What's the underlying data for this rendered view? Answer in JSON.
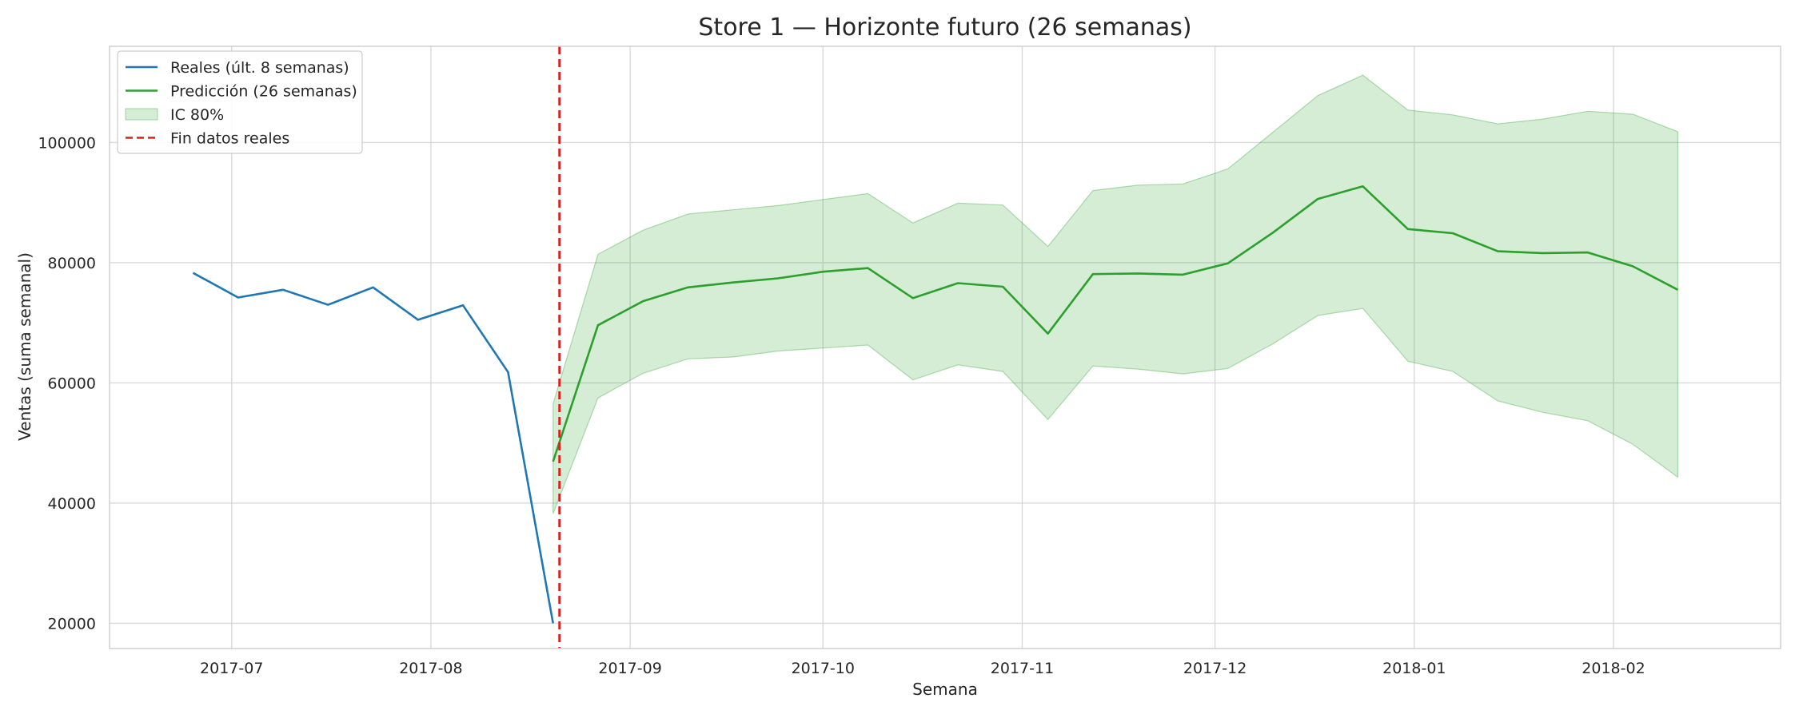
{
  "chart_data": {
    "type": "line",
    "title": "Store 1 — Horizonte futuro (26 semanas)",
    "xlabel": "Semana",
    "ylabel": "Ventas (suma semanal)",
    "x_type": "date",
    "xlim": [
      "2017-06-12",
      "2018-02-27"
    ],
    "ylim": [
      15800,
      116000
    ],
    "grid": true,
    "legend_position": "top-left",
    "x_ticks": [
      {
        "date": "2017-07-01",
        "label": "2017-07"
      },
      {
        "date": "2017-08-01",
        "label": "2017-08"
      },
      {
        "date": "2017-09-01",
        "label": "2017-09"
      },
      {
        "date": "2017-10-01",
        "label": "2017-10"
      },
      {
        "date": "2017-11-01",
        "label": "2017-11"
      },
      {
        "date": "2017-12-01",
        "label": "2017-12"
      },
      {
        "date": "2018-01-01",
        "label": "2018-01"
      },
      {
        "date": "2018-02-01",
        "label": "2018-02"
      }
    ],
    "y_ticks": [
      20000,
      40000,
      60000,
      80000,
      100000
    ],
    "y_tick_labels": [
      "20000",
      "40000",
      "60000",
      "80000",
      "100000"
    ],
    "series": [
      {
        "name": "Reales (últ. 8 semanas)",
        "color": "#1f77b4",
        "style": "solid",
        "points": [
          {
            "x": "2017-06-25",
            "y": 78300
          },
          {
            "x": "2017-07-02",
            "y": 74200
          },
          {
            "x": "2017-07-09",
            "y": 75500
          },
          {
            "x": "2017-07-16",
            "y": 73000
          },
          {
            "x": "2017-07-23",
            "y": 75900
          },
          {
            "x": "2017-07-30",
            "y": 70500
          },
          {
            "x": "2017-08-06",
            "y": 72900
          },
          {
            "x": "2017-08-13",
            "y": 61800
          },
          {
            "x": "2017-08-20",
            "y": 20000
          }
        ]
      },
      {
        "name": "Predicción (26 semanas)",
        "color": "#2ca02c",
        "style": "solid",
        "points": [
          {
            "x": "2017-08-20",
            "y": 46900
          },
          {
            "x": "2017-08-27",
            "y": 69600
          },
          {
            "x": "2017-09-03",
            "y": 73600
          },
          {
            "x": "2017-09-10",
            "y": 75900
          },
          {
            "x": "2017-09-17",
            "y": 76700
          },
          {
            "x": "2017-09-24",
            "y": 77400
          },
          {
            "x": "2017-10-01",
            "y": 78500
          },
          {
            "x": "2017-10-08",
            "y": 79100
          },
          {
            "x": "2017-10-15",
            "y": 74100
          },
          {
            "x": "2017-10-22",
            "y": 76600
          },
          {
            "x": "2017-10-29",
            "y": 76000
          },
          {
            "x": "2017-11-05",
            "y": 68200
          },
          {
            "x": "2017-11-12",
            "y": 78100
          },
          {
            "x": "2017-11-19",
            "y": 78200
          },
          {
            "x": "2017-11-26",
            "y": 78000
          },
          {
            "x": "2017-12-03",
            "y": 79900
          },
          {
            "x": "2017-12-10",
            "y": 85000
          },
          {
            "x": "2017-12-17",
            "y": 90600
          },
          {
            "x": "2017-12-24",
            "y": 92700
          },
          {
            "x": "2017-12-31",
            "y": 85600
          },
          {
            "x": "2018-01-07",
            "y": 84900
          },
          {
            "x": "2018-01-14",
            "y": 81900
          },
          {
            "x": "2018-01-21",
            "y": 81600
          },
          {
            "x": "2018-01-28",
            "y": 81700
          },
          {
            "x": "2018-02-04",
            "y": 79400
          },
          {
            "x": "2018-02-11",
            "y": 75500
          }
        ]
      }
    ],
    "band": {
      "name": "IC 80%",
      "color": "#2ca02c",
      "opacity": 0.2,
      "points": [
        {
          "x": "2017-08-20",
          "lower": 38200,
          "upper": 56500
        },
        {
          "x": "2017-08-27",
          "lower": 57500,
          "upper": 81400
        },
        {
          "x": "2017-09-03",
          "lower": 61600,
          "upper": 85400
        },
        {
          "x": "2017-09-10",
          "lower": 64000,
          "upper": 88100
        },
        {
          "x": "2017-09-17",
          "lower": 64300,
          "upper": 88800
        },
        {
          "x": "2017-09-24",
          "lower": 65300,
          "upper": 89500
        },
        {
          "x": "2017-10-01",
          "lower": 65800,
          "upper": 90500
        },
        {
          "x": "2017-10-08",
          "lower": 66300,
          "upper": 91500
        },
        {
          "x": "2017-10-15",
          "lower": 60500,
          "upper": 86600
        },
        {
          "x": "2017-10-22",
          "lower": 63000,
          "upper": 89900
        },
        {
          "x": "2017-10-29",
          "lower": 61900,
          "upper": 89600
        },
        {
          "x": "2017-11-05",
          "lower": 53900,
          "upper": 82700
        },
        {
          "x": "2017-11-12",
          "lower": 62800,
          "upper": 92000
        },
        {
          "x": "2017-11-19",
          "lower": 62300,
          "upper": 92900
        },
        {
          "x": "2017-11-26",
          "lower": 61500,
          "upper": 93100
        },
        {
          "x": "2017-12-03",
          "lower": 62400,
          "upper": 95600
        },
        {
          "x": "2017-12-10",
          "lower": 66500,
          "upper": 101700
        },
        {
          "x": "2017-12-17",
          "lower": 71200,
          "upper": 107800
        },
        {
          "x": "2017-12-24",
          "lower": 72400,
          "upper": 111200
        },
        {
          "x": "2017-12-31",
          "lower": 63600,
          "upper": 105400
        },
        {
          "x": "2018-01-07",
          "lower": 61900,
          "upper": 104600
        },
        {
          "x": "2018-01-14",
          "lower": 57000,
          "upper": 103100
        },
        {
          "x": "2018-01-21",
          "lower": 55100,
          "upper": 103900
        },
        {
          "x": "2018-01-28",
          "lower": 53700,
          "upper": 105200
        },
        {
          "x": "2018-02-04",
          "lower": 49800,
          "upper": 104700
        },
        {
          "x": "2018-02-11",
          "lower": 44300,
          "upper": 101800
        }
      ]
    },
    "vline": {
      "name": "Fin datos reales",
      "x": "2017-08-21",
      "color": "#e41a1c",
      "style": "dashed"
    },
    "legend": [
      {
        "label": "Reales (últ. 8 semanas)",
        "kind": "line",
        "color": "#1f77b4"
      },
      {
        "label": "Predicción (26 semanas)",
        "kind": "line",
        "color": "#2ca02c"
      },
      {
        "label": "IC 80%",
        "kind": "patch",
        "color": "#2ca02c"
      },
      {
        "label": "Fin datos reales",
        "kind": "dashed",
        "color": "#e41a1c"
      }
    ]
  }
}
